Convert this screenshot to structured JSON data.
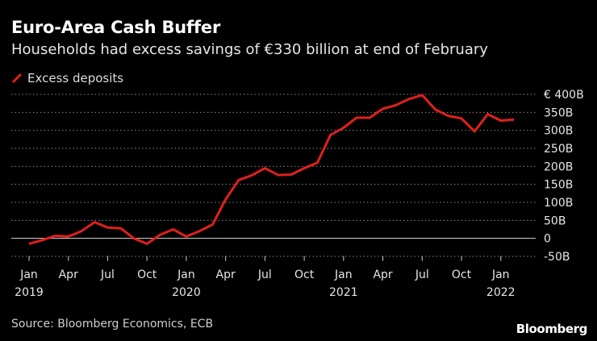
{
  "title": "Euro-Area Cash Buffer",
  "subtitle": "Households had excess savings of €330 billion at end of February",
  "legend_label": "Excess deposits",
  "source": "Source: Bloomberg Economics, ECB",
  "brand": "Bloomberg",
  "colors": {
    "line": "#e0201b",
    "grid": "#8a8a8a",
    "background": "#000000"
  },
  "chart_data": {
    "type": "line",
    "title": "Euro-Area Cash Buffer",
    "subtitle": "Households had excess savings of €330 billion at end of February",
    "xlabel": "",
    "ylabel": "",
    "ylim": [
      -50,
      400
    ],
    "y_ticks": [
      {
        "value": 400,
        "label": "€ 400B"
      },
      {
        "value": 350,
        "label": "350B"
      },
      {
        "value": 300,
        "label": "300B"
      },
      {
        "value": 250,
        "label": "250B"
      },
      {
        "value": 200,
        "label": "200B"
      },
      {
        "value": 150,
        "label": "150B"
      },
      {
        "value": 100,
        "label": "100B"
      },
      {
        "value": 50,
        "label": "50B"
      },
      {
        "value": 0,
        "label": "0"
      },
      {
        "value": -50,
        "label": "-50B"
      }
    ],
    "x_ticks": [
      {
        "index": 0,
        "label": "Jan",
        "year": "2019"
      },
      {
        "index": 3,
        "label": "Apr",
        "year": ""
      },
      {
        "index": 6,
        "label": "Jul",
        "year": ""
      },
      {
        "index": 9,
        "label": "Oct",
        "year": ""
      },
      {
        "index": 12,
        "label": "Jan",
        "year": "2020"
      },
      {
        "index": 15,
        "label": "Apr",
        "year": ""
      },
      {
        "index": 18,
        "label": "Jul",
        "year": ""
      },
      {
        "index": 21,
        "label": "Oct",
        "year": ""
      },
      {
        "index": 24,
        "label": "Jan",
        "year": "2021"
      },
      {
        "index": 27,
        "label": "Apr",
        "year": ""
      },
      {
        "index": 30,
        "label": "Jul",
        "year": ""
      },
      {
        "index": 33,
        "label": "Oct",
        "year": ""
      },
      {
        "index": 36,
        "label": "Jan",
        "year": "2022"
      }
    ],
    "series": [
      {
        "name": "Excess deposits",
        "x": [
          "2019-01",
          "2019-02",
          "2019-03",
          "2019-04",
          "2019-05",
          "2019-06",
          "2019-07",
          "2019-08",
          "2019-09",
          "2019-10",
          "2019-11",
          "2019-12",
          "2020-01",
          "2020-02",
          "2020-03",
          "2020-04",
          "2020-05",
          "2020-06",
          "2020-07",
          "2020-08",
          "2020-09",
          "2020-10",
          "2020-11",
          "2020-12",
          "2021-01",
          "2021-02",
          "2021-03",
          "2021-04",
          "2021-05",
          "2021-06",
          "2021-07",
          "2021-08",
          "2021-09",
          "2021-10",
          "2021-11",
          "2021-12",
          "2022-01",
          "2022-02"
        ],
        "values": [
          -15,
          -5,
          7,
          5,
          20,
          45,
          30,
          28,
          0,
          -15,
          10,
          25,
          5,
          20,
          38,
          108,
          162,
          175,
          195,
          176,
          177,
          195,
          210,
          287,
          307,
          335,
          335,
          360,
          370,
          387,
          398,
          358,
          340,
          333,
          297,
          345,
          327,
          330
        ]
      }
    ]
  }
}
